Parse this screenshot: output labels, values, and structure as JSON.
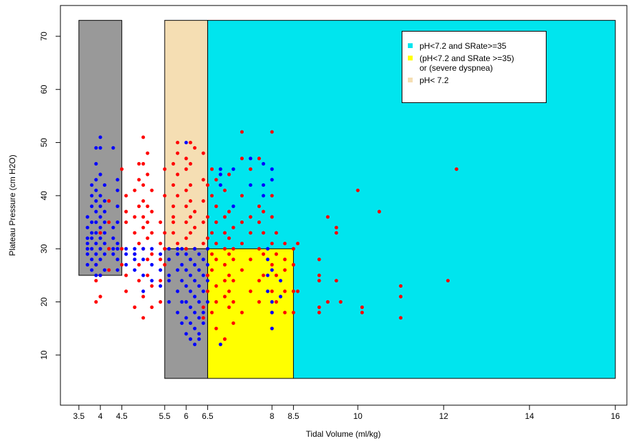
{
  "chart_data": {
    "type": "scatter",
    "xlabel": "Tidal Volume (ml/kg)",
    "ylabel": "Plateau Pressure (cm H2O)",
    "xlim": [
      3.07,
      16.27
    ],
    "ylim": [
      0.56,
      75.8
    ],
    "xticks": [
      3.5,
      4,
      4.5,
      5.5,
      6,
      6.5,
      8,
      8.5,
      10,
      12,
      14,
      16
    ],
    "yticks": [
      10,
      20,
      30,
      40,
      50,
      60,
      70
    ],
    "regions": [
      {
        "name": "pH<7.2 and SRate>=35",
        "color": "#00e5ee",
        "x0": 6.5,
        "x1": 16,
        "y0": 5.6,
        "y1": 73
      },
      {
        "name": "(pH<7.2 and SRate >=35)\n or (severe dyspnea)",
        "color": "#ffff00",
        "x0": 6.5,
        "x1": 8.5,
        "y0": 5.6,
        "y1": 30
      },
      {
        "name": "pH< 7.2",
        "color": "#f5deb3",
        "x0": 5.5,
        "x1": 6.5,
        "y0": 30,
        "y1": 73
      },
      {
        "color": "#999999",
        "x0": 3.5,
        "x1": 4.5,
        "y0": 25,
        "y1": 73
      },
      {
        "color": "#999999",
        "x0": 5.5,
        "x1": 6.5,
        "y0": 5.6,
        "y1": 30
      }
    ],
    "series": [
      {
        "color": "#ff0000",
        "x": [
          3.9,
          3.9,
          3.9,
          4.0,
          4.0,
          4.0,
          4.2,
          4.2,
          4.2,
          4.2,
          4.5,
          4.5,
          4.5,
          4.6,
          4.6,
          4.6,
          4.6,
          4.6,
          4.8,
          4.8,
          4.8,
          4.8,
          4.8,
          4.9,
          4.9,
          4.9,
          4.9,
          4.9,
          4.9,
          5.0,
          5.0,
          5.0,
          5.0,
          5.0,
          5.0,
          5.0,
          5.0,
          5.0,
          5.1,
          5.1,
          5.1,
          5.1,
          5.1,
          5.1,
          5.1,
          5.2,
          5.2,
          5.2,
          5.2,
          5.2,
          5.2,
          5.4,
          5.4,
          5.4,
          5.4,
          5.4,
          5.5,
          5.5,
          5.5,
          5.5,
          5.5,
          5.7,
          5.7,
          5.7,
          5.7,
          5.7,
          5.7,
          5.8,
          5.8,
          5.8,
          5.8,
          5.8,
          6.0,
          6.0,
          6.0,
          6.0,
          6.0,
          6.0,
          6.0,
          6.1,
          6.1,
          6.1,
          6.1,
          6.1,
          6.1,
          6.2,
          6.2,
          6.2,
          6.2,
          6.4,
          6.4,
          6.4,
          6.4,
          6.4,
          6.4,
          6.4,
          6.5,
          6.5,
          6.5,
          6.5,
          6.5,
          6.6,
          6.6,
          6.6,
          6.6,
          6.6,
          6.6,
          6.7,
          6.7,
          6.7,
          6.7,
          6.7,
          6.7,
          6.7,
          6.7,
          6.9,
          6.9,
          6.9,
          6.9,
          6.9,
          6.9,
          6.9,
          6.9,
          7.0,
          7.0,
          7.0,
          7.0,
          7.0,
          7.0,
          7.0,
          7.1,
          7.1,
          7.1,
          7.1,
          7.1,
          7.1,
          7.3,
          7.3,
          7.3,
          7.3,
          7.3,
          7.3,
          7.3,
          7.5,
          7.5,
          7.5,
          7.5,
          7.5,
          7.7,
          7.7,
          7.7,
          7.7,
          7.7,
          7.7,
          7.8,
          7.8,
          7.8,
          7.8,
          8.0,
          8.0,
          8.0,
          8.0,
          8.0,
          8.0,
          8.0,
          8.0,
          8.1,
          8.1,
          8.1,
          8.1,
          8.3,
          8.3,
          8.3,
          8.3,
          8.3,
          8.5,
          8.5,
          8.5,
          8.5,
          8.6,
          8.6,
          9.1,
          9.1,
          9.1,
          9.1,
          9.1,
          9.3,
          9.3,
          9.5,
          9.5,
          9.5,
          9.6,
          10.0,
          10.1,
          10.1,
          10.5,
          11.0,
          11.0,
          11.0,
          12.1,
          12.3
        ],
        "y": [
          20,
          24,
          27,
          21,
          25,
          33,
          26,
          30,
          35,
          39,
          45,
          30,
          27,
          35,
          37,
          40,
          25,
          22,
          33,
          36,
          41,
          29,
          19,
          27,
          31,
          38,
          43,
          46,
          24,
          17,
          21,
          30,
          34,
          36,
          39,
          42,
          46,
          51,
          25,
          28,
          32,
          35,
          38,
          44,
          48,
          19,
          23,
          29,
          33,
          37,
          41,
          28,
          31,
          35,
          24,
          20,
          27,
          30,
          33,
          40,
          45,
          36,
          38,
          42,
          46,
          35,
          33,
          31,
          40,
          44,
          48,
          50,
          30,
          32,
          35,
          38,
          41,
          45,
          47,
          33,
          36,
          39,
          42,
          46,
          50,
          30,
          34,
          37,
          49,
          31,
          35,
          39,
          43,
          48,
          19,
          17,
          32,
          36,
          42,
          25,
          22,
          26,
          29,
          33,
          40,
          45,
          18,
          20,
          23,
          28,
          31,
          35,
          38,
          43,
          15,
          21,
          24,
          27,
          30,
          33,
          36,
          41,
          13,
          19,
          22,
          25,
          29,
          32,
          37,
          44,
          16,
          20,
          24,
          28,
          34,
          30,
          18,
          26,
          31,
          35,
          40,
          47,
          52,
          22,
          28,
          33,
          45,
          36,
          20,
          24,
          30,
          35,
          38,
          47,
          25,
          29,
          33,
          37,
          15,
          18,
          22,
          27,
          31,
          36,
          40,
          52,
          20,
          25,
          29,
          33,
          18,
          22,
          28,
          31,
          26,
          18,
          22,
          30,
          27,
          31,
          22,
          28,
          25,
          24,
          19,
          18,
          36,
          20,
          34,
          33,
          24,
          20,
          41,
          19,
          18,
          37,
          23,
          21,
          17,
          24,
          45
        ]
      },
      {
        "color": "#0000ff",
        "x": [
          3.7,
          3.7,
          3.7,
          3.7,
          3.7,
          3.7,
          3.7,
          3.8,
          3.8,
          3.8,
          3.8,
          3.8,
          3.8,
          3.8,
          3.8,
          3.8,
          3.9,
          3.9,
          3.9,
          3.9,
          3.9,
          3.9,
          3.9,
          3.9,
          3.9,
          3.9,
          3.9,
          3.9,
          4.0,
          4.0,
          4.0,
          4.0,
          4.0,
          4.0,
          4.0,
          4.0,
          4.0,
          4.0,
          4.0,
          4.1,
          4.1,
          4.1,
          4.1,
          4.1,
          4.1,
          4.1,
          4.1,
          4.3,
          4.3,
          4.3,
          4.3,
          4.3,
          4.4,
          4.4,
          4.4,
          4.4,
          4.4,
          4.4,
          4.4,
          4.4,
          4.6,
          4.6,
          4.6,
          4.8,
          4.8,
          4.8,
          4.8,
          5.0,
          5.0,
          5.0,
          5.0,
          5.2,
          5.2,
          5.2,
          5.4,
          5.4,
          5.4,
          5.6,
          5.6,
          5.6,
          5.6,
          5.6,
          5.8,
          5.8,
          5.8,
          5.8,
          5.8,
          5.9,
          5.9,
          5.9,
          5.9,
          5.9,
          6.0,
          6.0,
          6.0,
          6.0,
          6.0,
          6.0,
          6.0,
          6.1,
          6.1,
          6.1,
          6.1,
          6.1,
          6.1,
          6.2,
          6.2,
          6.2,
          6.2,
          6.2,
          6.2,
          6.2,
          6.3,
          6.3,
          6.3,
          6.3,
          6.3,
          6.3,
          6.3,
          6.4,
          6.4,
          6.4,
          6.4,
          6.4,
          6.5,
          6.5,
          6.5,
          6.5,
          6.8,
          6.8,
          6.8,
          6.8,
          7.1,
          7.1,
          7.5,
          7.5,
          7.8,
          7.8,
          7.8,
          7.9,
          7.9,
          7.9,
          7.9,
          8.0,
          8.0,
          8.0,
          8.0,
          8.0,
          8.0,
          8.2,
          8.2
        ],
        "y": [
          29,
          30,
          31,
          32,
          34,
          36,
          27,
          26,
          28,
          30,
          32,
          33,
          35,
          38,
          40,
          42,
          25,
          27,
          29,
          31,
          33,
          35,
          37,
          39,
          41,
          43,
          46,
          49,
          25,
          28,
          30,
          32,
          34,
          36,
          38,
          40,
          44,
          49,
          51,
          26,
          29,
          31,
          33,
          35,
          37,
          39,
          42,
          29,
          30,
          32,
          34,
          49,
          26,
          28,
          30,
          31,
          35,
          38,
          41,
          43,
          27,
          29,
          30,
          26,
          28,
          30,
          29,
          25,
          28,
          30,
          22,
          27,
          30,
          24,
          26,
          29,
          23,
          20,
          24,
          28,
          30,
          25,
          18,
          22,
          26,
          29,
          30,
          16,
          20,
          24,
          27,
          30,
          14,
          17,
          20,
          23,
          26,
          29,
          50,
          13,
          16,
          19,
          22,
          25,
          28,
          12,
          15,
          18,
          21,
          24,
          27,
          30,
          14,
          17,
          20,
          23,
          26,
          29,
          13,
          18,
          22,
          25,
          28,
          16,
          20,
          24,
          27,
          30,
          12,
          42,
          44,
          45,
          45,
          38,
          47,
          42,
          46,
          40,
          42,
          22,
          25,
          28,
          30,
          15,
          18,
          20,
          26,
          43,
          45,
          21,
          24
        ]
      }
    ]
  }
}
